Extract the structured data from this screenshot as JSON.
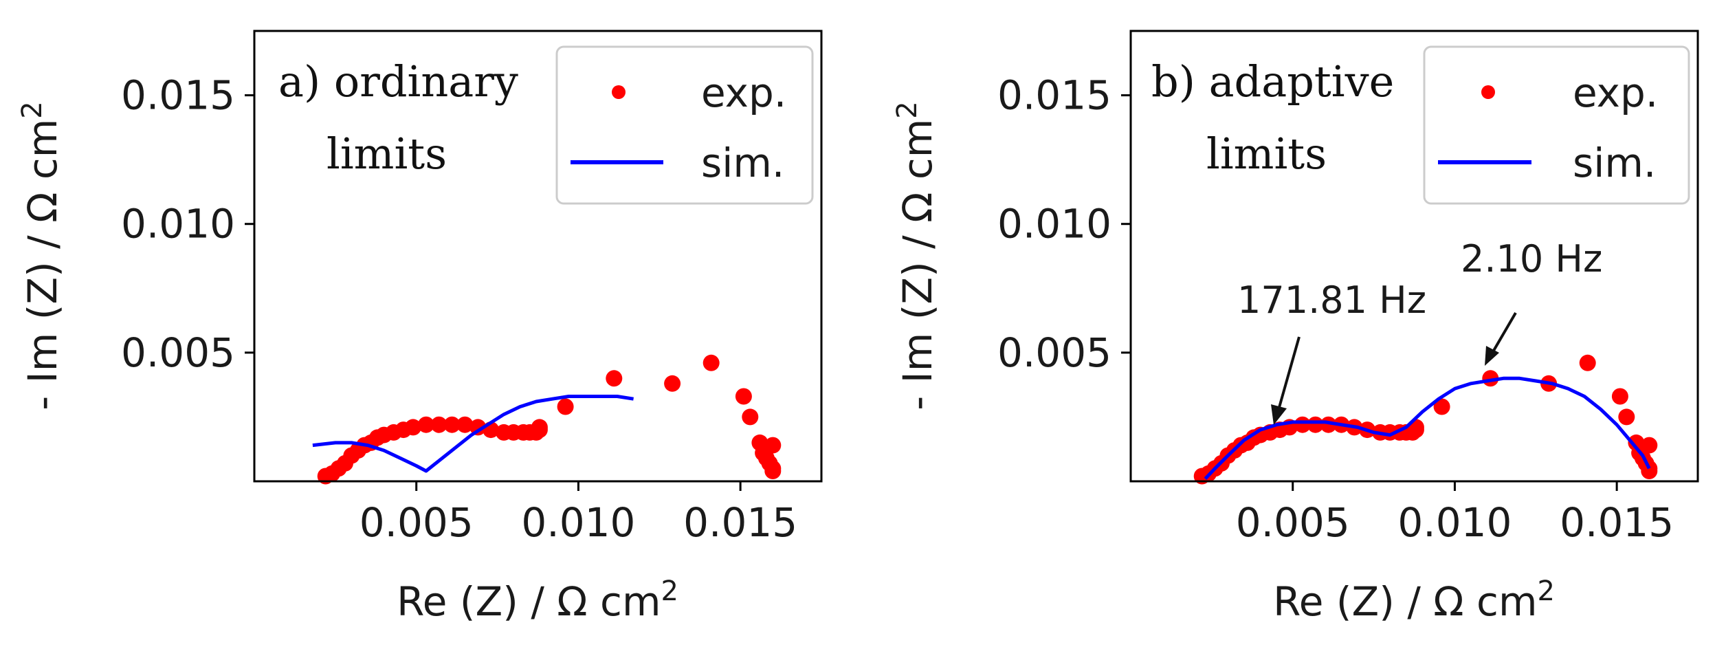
{
  "chart_data": [
    {
      "type": "scatter",
      "panel_label": [
        "a) ordinary",
        "limits"
      ],
      "xlabel": "Re (Z) / Ω cm",
      "xlabel_sup": "2",
      "ylabel": "- Im (Z) / Ω cm",
      "ylabel_sup": "2",
      "xlim": [
        0.0,
        0.0175
      ],
      "ylim": [
        0.0,
        0.0175
      ],
      "x_ticks": [
        0.005,
        0.01,
        0.015
      ],
      "x_tick_labels": [
        "0.005",
        "0.010",
        "0.015"
      ],
      "y_ticks": [
        0.005,
        0.01,
        0.015
      ],
      "y_tick_labels": [
        "0.005",
        "0.010",
        "0.015"
      ],
      "legend": {
        "position": "top-right",
        "entries": [
          "exp.",
          "sim."
        ]
      },
      "series": [
        {
          "name": "exp.",
          "kind": "scatter",
          "color": "#ff0000",
          "x": [
            0.0022,
            0.0024,
            0.0026,
            0.0028,
            0.003,
            0.0032,
            0.0034,
            0.0036,
            0.0038,
            0.004,
            0.0043,
            0.0046,
            0.0049,
            0.0053,
            0.0057,
            0.0061,
            0.0065,
            0.0069,
            0.0073,
            0.0077,
            0.008,
            0.0083,
            0.0085,
            0.0087,
            0.0088,
            0.0088,
            0.0096,
            0.0111,
            0.0129,
            0.0141,
            0.0151,
            0.0153,
            0.0156,
            0.0157,
            0.0158,
            0.0159,
            0.016,
            0.016,
            0.016
          ],
          "y": [
            0.0002,
            0.0003,
            0.0005,
            0.0007,
            0.001,
            0.0012,
            0.0014,
            0.0015,
            0.0017,
            0.0018,
            0.0019,
            0.002,
            0.0021,
            0.0022,
            0.0022,
            0.0022,
            0.0022,
            0.0021,
            0.002,
            0.0019,
            0.0019,
            0.0019,
            0.0019,
            0.0019,
            0.002,
            0.0021,
            0.0029,
            0.004,
            0.0038,
            0.0046,
            0.0033,
            0.0025,
            0.0015,
            0.0011,
            0.0009,
            0.0007,
            0.0005,
            0.0004,
            0.0014
          ]
        },
        {
          "name": "sim.",
          "kind": "line",
          "color": "#0000ff",
          "x": [
            0.0018,
            0.0025,
            0.003,
            0.0035,
            0.004,
            0.0045,
            0.005,
            0.0053,
            0.0057,
            0.0062,
            0.0067,
            0.0072,
            0.0077,
            0.0082,
            0.0087,
            0.0092,
            0.0097,
            0.0102,
            0.0107,
            0.0112,
            0.0117
          ],
          "y": [
            0.0014,
            0.0015,
            0.0015,
            0.0014,
            0.0012,
            0.0009,
            0.0006,
            0.0004,
            0.0008,
            0.0013,
            0.0018,
            0.0022,
            0.0026,
            0.0029,
            0.0031,
            0.0032,
            0.0033,
            0.0033,
            0.0033,
            0.0033,
            0.0032
          ]
        }
      ]
    },
    {
      "type": "scatter",
      "panel_label": [
        "b) adaptive",
        "limits"
      ],
      "xlabel": "Re (Z) / Ω cm",
      "xlabel_sup": "2",
      "ylabel": "- Im (Z) / Ω cm",
      "ylabel_sup": "2",
      "xlim": [
        0.0,
        0.0175
      ],
      "ylim": [
        0.0,
        0.0175
      ],
      "x_ticks": [
        0.005,
        0.01,
        0.015
      ],
      "x_tick_labels": [
        "0.005",
        "0.010",
        "0.015"
      ],
      "y_ticks": [
        0.005,
        0.01,
        0.015
      ],
      "y_tick_labels": [
        "0.005",
        "0.010",
        "0.015"
      ],
      "legend": {
        "position": "top-right",
        "entries": [
          "exp.",
          "sim."
        ]
      },
      "annotations": [
        {
          "text": "171.81 Hz",
          "x": 0.0047,
          "y": 0.0025
        },
        {
          "text": "2.10 Hz",
          "x": 0.0111,
          "y": 0.0042
        }
      ],
      "series": [
        {
          "name": "exp.",
          "kind": "scatter",
          "color": "#ff0000",
          "x": [
            0.0022,
            0.0024,
            0.0026,
            0.0028,
            0.003,
            0.0032,
            0.0034,
            0.0036,
            0.0038,
            0.004,
            0.0043,
            0.0046,
            0.0049,
            0.0053,
            0.0057,
            0.0061,
            0.0065,
            0.0069,
            0.0073,
            0.0077,
            0.008,
            0.0083,
            0.0085,
            0.0087,
            0.0088,
            0.0088,
            0.0096,
            0.0111,
            0.0129,
            0.0141,
            0.0151,
            0.0153,
            0.0156,
            0.0157,
            0.0158,
            0.0159,
            0.016,
            0.016,
            0.016
          ],
          "y": [
            0.0002,
            0.0003,
            0.0005,
            0.0007,
            0.001,
            0.0012,
            0.0014,
            0.0015,
            0.0017,
            0.0018,
            0.0019,
            0.002,
            0.0021,
            0.0022,
            0.0022,
            0.0022,
            0.0022,
            0.0021,
            0.002,
            0.0019,
            0.0019,
            0.0019,
            0.0019,
            0.0019,
            0.002,
            0.0021,
            0.0029,
            0.004,
            0.0038,
            0.0046,
            0.0033,
            0.0025,
            0.0015,
            0.0011,
            0.0009,
            0.0007,
            0.0005,
            0.0004,
            0.0014
          ]
        },
        {
          "name": "sim.",
          "kind": "line",
          "color": "#0000ff",
          "x": [
            0.0023,
            0.0026,
            0.003,
            0.0035,
            0.004,
            0.0045,
            0.005,
            0.0055,
            0.006,
            0.0065,
            0.007,
            0.0075,
            0.008,
            0.0085,
            0.009,
            0.0095,
            0.01,
            0.0105,
            0.011,
            0.0115,
            0.012,
            0.0125,
            0.013,
            0.0135,
            0.014,
            0.0145,
            0.015,
            0.0154,
            0.0158,
            0.016
          ],
          "y": [
            0.0001,
            0.0005,
            0.001,
            0.0016,
            0.002,
            0.0022,
            0.0023,
            0.0023,
            0.0023,
            0.0022,
            0.0021,
            0.0019,
            0.0018,
            0.0021,
            0.0027,
            0.0032,
            0.0036,
            0.0038,
            0.0039,
            0.004,
            0.004,
            0.0039,
            0.0038,
            0.0036,
            0.0033,
            0.0028,
            0.0022,
            0.0016,
            0.001,
            0.0005
          ]
        }
      ]
    }
  ]
}
